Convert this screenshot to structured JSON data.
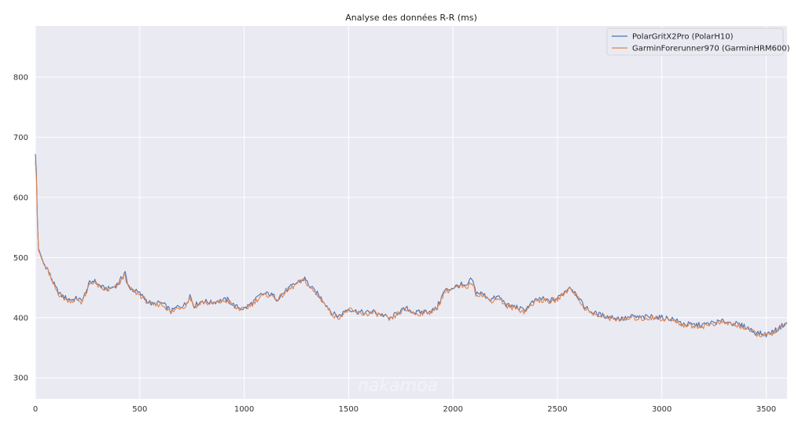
{
  "chart_data": {
    "type": "line",
    "title": "Analyse des données R-R (ms)",
    "xlabel": "",
    "ylabel": "",
    "xlim": [
      0,
      3600
    ],
    "ylim": [
      265,
      885
    ],
    "xticks": [
      0,
      500,
      1000,
      1500,
      2000,
      2500,
      3000,
      3500
    ],
    "yticks": [
      300,
      400,
      500,
      600,
      700,
      800
    ],
    "grid": true,
    "legend": "top-right",
    "series": [
      {
        "name": "PolarGritX2Pro (PolarH10)",
        "color": "#4c72b0",
        "x": [
          0,
          5,
          10,
          15,
          20,
          30,
          40,
          50,
          60,
          80,
          100,
          120,
          150,
          180,
          200,
          220,
          240,
          260,
          280,
          300,
          320,
          350,
          380,
          400,
          420,
          430,
          440,
          460,
          500,
          530,
          560,
          600,
          630,
          650,
          680,
          720,
          740,
          760,
          800,
          840,
          880,
          920,
          960,
          1000,
          1040,
          1080,
          1120,
          1160,
          1200,
          1240,
          1260,
          1290,
          1320,
          1350,
          1380,
          1420,
          1450,
          1480,
          1500,
          1540,
          1580,
          1620,
          1660,
          1700,
          1740,
          1780,
          1820,
          1860,
          1900,
          1920,
          1940,
          1960,
          2000,
          2040,
          2060,
          2090,
          2110,
          2140,
          2180,
          2220,
          2260,
          2300,
          2340,
          2380,
          2420,
          2460,
          2500,
          2540,
          2560,
          2590,
          2620,
          2660,
          2700,
          2740,
          2780,
          2820,
          2860,
          2900,
          2950,
          3000,
          3050,
          3100,
          3150,
          3200,
          3250,
          3300,
          3350,
          3400,
          3450,
          3500,
          3540,
          3560,
          3580,
          3600
        ],
        "y": [
          672,
          640,
          560,
          515,
          510,
          500,
          490,
          485,
          480,
          462,
          448,
          438,
          432,
          430,
          432,
          428,
          440,
          458,
          462,
          455,
          450,
          448,
          452,
          458,
          470,
          478,
          455,
          448,
          440,
          430,
          422,
          425,
          418,
          410,
          418,
          422,
          438,
          420,
          428,
          425,
          428,
          430,
          418,
          415,
          425,
          438,
          440,
          432,
          445,
          455,
          460,
          465,
          450,
          440,
          428,
          408,
          402,
          410,
          415,
          410,
          408,
          410,
          405,
          398,
          410,
          415,
          408,
          410,
          412,
          415,
          430,
          445,
          450,
          455,
          450,
          465,
          442,
          440,
          430,
          435,
          420,
          418,
          412,
          425,
          432,
          428,
          432,
          445,
          452,
          440,
          422,
          410,
          405,
          402,
          400,
          398,
          402,
          400,
          402,
          400,
          398,
          390,
          388,
          388,
          392,
          394,
          390,
          385,
          375,
          372,
          378,
          382,
          388,
          392
        ]
      },
      {
        "name": "GarminForerunner970 (GarminHRM600)",
        "color": "#dd8452",
        "x": [
          0,
          5,
          10,
          15,
          20,
          30,
          40,
          50,
          60,
          80,
          100,
          120,
          150,
          180,
          200,
          220,
          240,
          260,
          280,
          300,
          320,
          350,
          380,
          400,
          420,
          430,
          440,
          460,
          500,
          530,
          560,
          600,
          630,
          650,
          680,
          720,
          740,
          760,
          800,
          840,
          880,
          920,
          960,
          1000,
          1040,
          1080,
          1120,
          1160,
          1200,
          1240,
          1260,
          1290,
          1320,
          1350,
          1380,
          1420,
          1450,
          1480,
          1500,
          1540,
          1580,
          1620,
          1660,
          1700,
          1740,
          1780,
          1820,
          1860,
          1900,
          1920,
          1940,
          1960,
          2000,
          2040,
          2060,
          2090,
          2110,
          2140,
          2180,
          2220,
          2260,
          2300,
          2340,
          2380,
          2420,
          2460,
          2500,
          2540,
          2560,
          2590,
          2620,
          2660,
          2700,
          2740,
          2780,
          2820,
          2860,
          2900,
          2950,
          3000,
          3050,
          3100,
          3150,
          3200,
          3250,
          3300,
          3350,
          3400,
          3450,
          3500,
          3540,
          3560,
          3580,
          3600
        ],
        "y": [
          660,
          630,
          555,
          512,
          508,
          498,
          488,
          483,
          478,
          460,
          446,
          436,
          430,
          428,
          430,
          426,
          438,
          456,
          460,
          453,
          448,
          446,
          450,
          456,
          466,
          474,
          452,
          446,
          438,
          428,
          420,
          423,
          416,
          408,
          416,
          420,
          434,
          418,
          426,
          423,
          426,
          428,
          416,
          413,
          423,
          436,
          438,
          430,
          443,
          453,
          458,
          462,
          448,
          438,
          426,
          406,
          400,
          408,
          413,
          408,
          406,
          408,
          403,
          396,
          408,
          413,
          406,
          408,
          410,
          413,
          428,
          443,
          448,
          452,
          448,
          460,
          440,
          438,
          428,
          433,
          418,
          416,
          410,
          423,
          430,
          426,
          430,
          443,
          450,
          438,
          420,
          408,
          403,
          400,
          398,
          396,
          400,
          398,
          400,
          398,
          396,
          388,
          386,
          386,
          390,
          392,
          388,
          383,
          373,
          370,
          376,
          380,
          386,
          390
        ]
      }
    ]
  },
  "watermark": "nakamoa"
}
